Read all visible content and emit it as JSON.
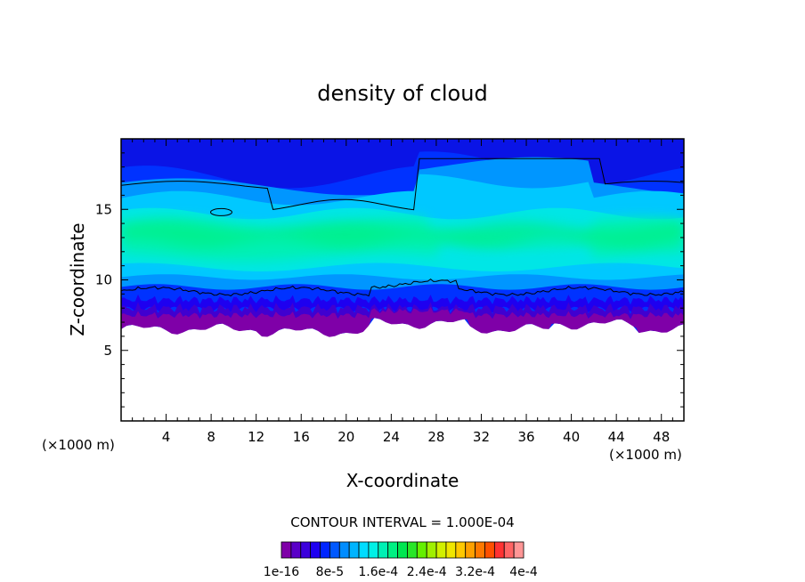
{
  "chart_data": {
    "type": "heatmap",
    "title": "density of cloud",
    "xlabel": "X-coordinate",
    "ylabel": "Z-coordinate",
    "x_unit_left": "(×1000 m)",
    "x_unit_right": "(×1000 m)",
    "xlim": [
      0,
      50
    ],
    "ylim": [
      0,
      20
    ],
    "x_ticks": [
      4,
      8,
      12,
      16,
      20,
      24,
      28,
      32,
      36,
      40,
      44,
      48
    ],
    "y_ticks": [
      5,
      10,
      15
    ],
    "contour_interval_text": "CONTOUR INTERVAL = 1.000E-04",
    "colorbar": {
      "labels": [
        "1e-16",
        "8e-5",
        "1.6e-4",
        "2.4e-4",
        "3.2e-4",
        "4e-4"
      ],
      "colors": [
        "#7f00a8",
        "#5a00c8",
        "#3c00dc",
        "#1e00f0",
        "#0024ff",
        "#0058ff",
        "#008cff",
        "#00b4ff",
        "#00dcff",
        "#00f0e6",
        "#00f0b4",
        "#00f082",
        "#00e650",
        "#28e628",
        "#64f000",
        "#a0f000",
        "#d2f000",
        "#f0e600",
        "#ffc800",
        "#ffa000",
        "#ff7800",
        "#ff5000",
        "#ff3232",
        "#ff6464",
        "#ff9696"
      ]
    },
    "layers": {
      "cloud_base_km": 6.5,
      "purple_top_km": 7.6,
      "ragged_edge_km": 9.2,
      "band_center_km": 13.0,
      "upper_contour_km": 17.0,
      "top_km": 20
    }
  }
}
